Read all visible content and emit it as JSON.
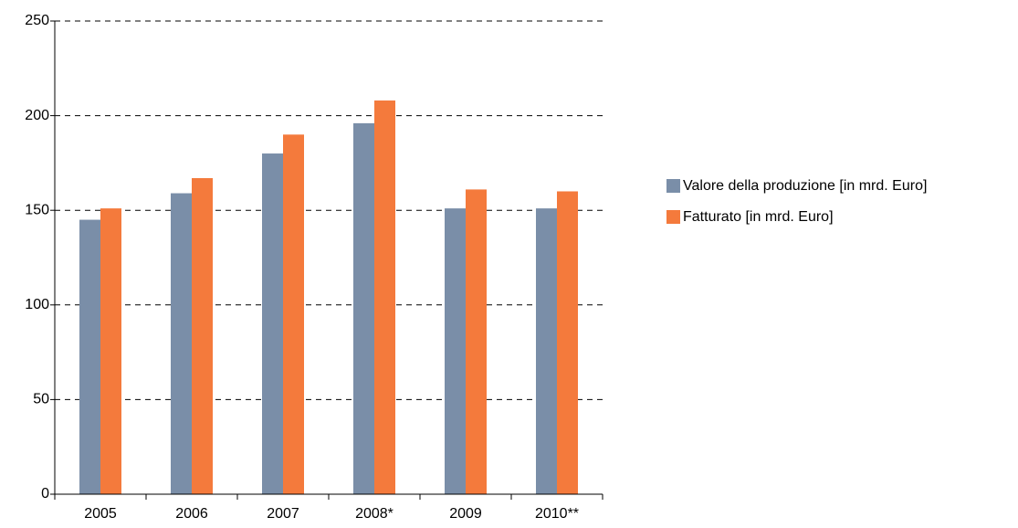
{
  "chart_data": {
    "type": "bar",
    "categories": [
      "2005",
      "2006",
      "2007",
      "2008*",
      "2009",
      "2010**"
    ],
    "series": [
      {
        "name": "Valore della produzione [in mrd. Euro]",
        "color": "#7a8ea8",
        "values": [
          145,
          159,
          180,
          196,
          151,
          151
        ]
      },
      {
        "name": "Fatturato [in mrd. Euro]",
        "color": "#f47a3c",
        "values": [
          151,
          167,
          190,
          208,
          161,
          160
        ]
      }
    ],
    "ylim": [
      0,
      250
    ],
    "yticks": [
      0,
      50,
      100,
      150,
      200,
      250
    ],
    "grid": true,
    "legend": "right"
  }
}
